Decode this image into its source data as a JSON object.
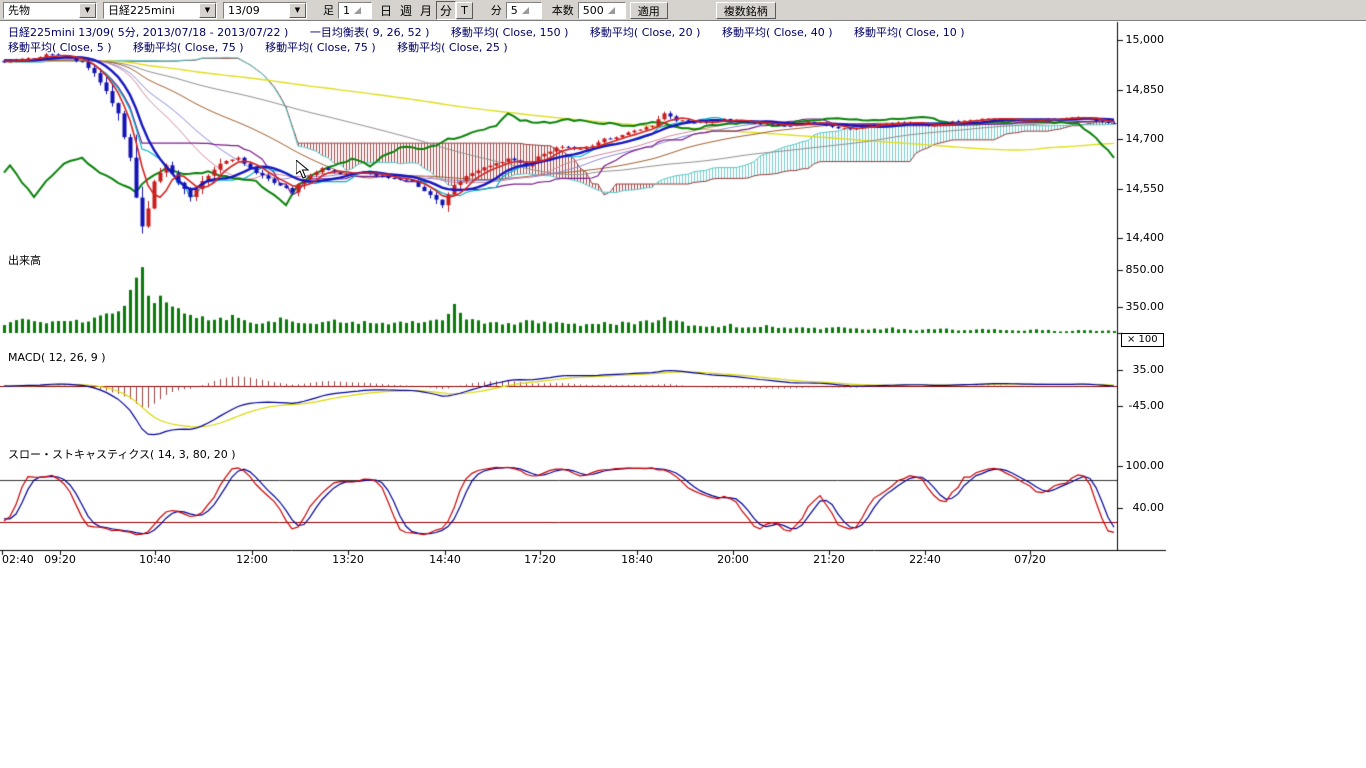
{
  "toolbar": {
    "instrument_type": "先物",
    "instrument": "日経225mini",
    "contract_month": "13/09",
    "ashi_label": "足",
    "ashi_value": "1",
    "period_day": "日",
    "period_week": "週",
    "period_month": "月",
    "period_minute": "分",
    "tick_button": "T",
    "minute_label": "分",
    "minute_value": "5",
    "bars_label": "本数",
    "bars_value": "500",
    "apply_button": "適用",
    "multi_symbol_button": "複数銘柄"
  },
  "chart_header": {
    "line1": [
      "日経225mini 13/09( 5分, 2013/07/18 - 2013/07/22 )",
      "一目均衡表( 9, 26, 52 )",
      "移動平均( Close, 150 )",
      "移動平均( Close, 20 )",
      "移動平均( Close, 40 )",
      "移動平均( Close, 10 )"
    ],
    "line2": [
      "移動平均( Close, 5 )",
      "移動平均( Close, 75 )",
      "移動平均( Close, 75 )",
      "移動平均( Close, 25 )"
    ]
  },
  "sections": {
    "volume_label": "出来高",
    "macd_label": "MACD( 12, 26, 9 )",
    "stoch_label": "スロー・ストキャスティクス( 14, 3, 80, 20 )",
    "multiplier_badge": "× 100"
  },
  "axes": {
    "price_ticks": [
      "15,000",
      "14,850",
      "14,700",
      "14,550",
      "14,400"
    ],
    "volume_ticks": [
      "850.00",
      "350.00"
    ],
    "macd_ticks": [
      "35.00",
      "-45.00"
    ],
    "stoch_ticks": [
      "100.00",
      "40.00"
    ],
    "time_labels": [
      "02:40",
      "09:20",
      "10:40",
      "12:00",
      "13:20",
      "14:40",
      "17:20",
      "18:40",
      "20:00",
      "21:20",
      "22:40",
      "07/20"
    ]
  },
  "chart_data": {
    "type": "candlestick",
    "title": "日経225mini 13/09( 5分, 2013/07/18 - 2013/07/22 )",
    "bars_visible": 186,
    "noise_seed": 7,
    "price_axis": {
      "min": 14400,
      "max": 15000,
      "ticks": [
        15000,
        14850,
        14700,
        14550,
        14400
      ]
    },
    "volume_axis": {
      "ticks": [
        850,
        350
      ],
      "multiplier": 100
    },
    "macd_axis": {
      "ticks": [
        35,
        -45
      ]
    },
    "stoch_axis": {
      "ticks": [
        100,
        40
      ],
      "upper_band": 80,
      "lower_band": 20
    },
    "indicators": {
      "ichimoku": [
        9,
        26,
        52
      ],
      "moving_averages": [
        150,
        20,
        40,
        10,
        5,
        75,
        75,
        25
      ],
      "macd": [
        12,
        26,
        9
      ],
      "slow_stochastics": [
        14,
        3,
        80,
        20
      ]
    },
    "close_path_anchors": [
      [
        -160,
        14900
      ],
      [
        -120,
        14930
      ],
      [
        -80,
        14950
      ],
      [
        -40,
        14930
      ],
      [
        -10,
        14940
      ],
      [
        0,
        14935
      ],
      [
        5,
        14945
      ],
      [
        8,
        14958
      ],
      [
        10,
        14950
      ],
      [
        13,
        14930
      ],
      [
        15,
        14900
      ],
      [
        17,
        14845
      ],
      [
        19,
        14775
      ],
      [
        20,
        14705
      ],
      [
        21,
        14640
      ],
      [
        22,
        14520
      ],
      [
        23,
        14435
      ],
      [
        24,
        14490
      ],
      [
        25,
        14570
      ],
      [
        27,
        14620
      ],
      [
        29,
        14570
      ],
      [
        31,
        14525
      ],
      [
        33,
        14570
      ],
      [
        36,
        14628
      ],
      [
        39,
        14640
      ],
      [
        42,
        14600
      ],
      [
        45,
        14565
      ],
      [
        48,
        14540
      ],
      [
        50,
        14580
      ],
      [
        53,
        14610
      ],
      [
        56,
        14592
      ],
      [
        60,
        14600
      ],
      [
        64,
        14582
      ],
      [
        68,
        14570
      ],
      [
        71,
        14532
      ],
      [
        73,
        14500
      ],
      [
        75,
        14558
      ],
      [
        78,
        14598
      ],
      [
        81,
        14618
      ],
      [
        84,
        14638
      ],
      [
        87,
        14620
      ],
      [
        90,
        14658
      ],
      [
        93,
        14678
      ],
      [
        96,
        14668
      ],
      [
        100,
        14698
      ],
      [
        104,
        14718
      ],
      [
        108,
        14742
      ],
      [
        110,
        14778
      ],
      [
        112,
        14758
      ],
      [
        115,
        14748
      ],
      [
        120,
        14758
      ],
      [
        125,
        14750
      ],
      [
        130,
        14740
      ],
      [
        135,
        14752
      ],
      [
        140,
        14730
      ],
      [
        145,
        14742
      ],
      [
        150,
        14752
      ],
      [
        155,
        14740
      ],
      [
        160,
        14758
      ],
      [
        165,
        14760
      ],
      [
        170,
        14755
      ],
      [
        175,
        14762
      ],
      [
        180,
        14766
      ],
      [
        183,
        14750
      ],
      [
        185,
        14746
      ],
      [
        190,
        14750
      ],
      [
        195,
        14755
      ],
      [
        200,
        14752
      ],
      [
        205,
        14748
      ],
      [
        208,
        14700
      ],
      [
        211,
        14645
      ]
    ],
    "volume_anchors": [
      [
        0,
        120
      ],
      [
        3,
        180
      ],
      [
        6,
        150
      ],
      [
        10,
        200
      ],
      [
        13,
        160
      ],
      [
        16,
        230
      ],
      [
        19,
        320
      ],
      [
        21,
        520
      ],
      [
        22,
        800
      ],
      [
        23,
        950
      ],
      [
        24,
        620
      ],
      [
        25,
        420
      ],
      [
        26,
        520
      ],
      [
        27,
        360
      ],
      [
        28,
        310
      ],
      [
        30,
        260
      ],
      [
        32,
        210
      ],
      [
        35,
        185
      ],
      [
        38,
        225
      ],
      [
        40,
        165
      ],
      [
        43,
        145
      ],
      [
        46,
        185
      ],
      [
        50,
        155
      ],
      [
        53,
        135
      ],
      [
        56,
        165
      ],
      [
        60,
        145
      ],
      [
        63,
        125
      ],
      [
        66,
        155
      ],
      [
        70,
        135
      ],
      [
        73,
        210
      ],
      [
        75,
        360
      ],
      [
        77,
        185
      ],
      [
        80,
        145
      ],
      [
        84,
        125
      ],
      [
        88,
        155
      ],
      [
        92,
        135
      ],
      [
        96,
        115
      ],
      [
        100,
        145
      ],
      [
        104,
        125
      ],
      [
        108,
        165
      ],
      [
        110,
        210
      ],
      [
        112,
        145
      ],
      [
        115,
        105
      ],
      [
        118,
        85
      ],
      [
        121,
        105
      ],
      [
        124,
        75
      ],
      [
        127,
        95
      ],
      [
        130,
        65
      ],
      [
        133,
        85
      ],
      [
        136,
        55
      ],
      [
        140,
        75
      ],
      [
        144,
        45
      ],
      [
        148,
        65
      ],
      [
        152,
        40
      ],
      [
        156,
        55
      ],
      [
        160,
        35
      ],
      [
        164,
        50
      ],
      [
        168,
        30
      ],
      [
        172,
        45
      ],
      [
        176,
        25
      ],
      [
        180,
        40
      ],
      [
        183,
        28
      ],
      [
        185,
        32
      ]
    ],
    "time_axis": {
      "x_positions": [
        2,
        60,
        155,
        252,
        348,
        445,
        540,
        637,
        733,
        829,
        925,
        1030
      ]
    },
    "palette": {
      "candle_up": "#c81e1e",
      "candle_down": "#1414b4",
      "volume": "#0a7a0a",
      "chikou": "#0a820a",
      "ma5": "#d42020",
      "ma10": "#1616c0",
      "ma20": "#d08aa0",
      "ma25": "#8c8cd8",
      "ma40": "#a06030",
      "ma75": "#909090",
      "ma150": "#dede20",
      "tenkan": "#00b4c8",
      "kijun": "#7a1f8a",
      "span_a": "#58c8c8",
      "span_b": "#9a4040",
      "cloud_bull": "#7ecccc",
      "cloud_bear": "#a44a4a",
      "macd": "#000099",
      "macd_signal": "#d8d800",
      "macd_zero": "#990000",
      "macd_hist": "#994444",
      "stoch_k": "#cc0000",
      "stoch_d": "#000099",
      "stoch_upper": "#303030",
      "stoch_lower": "#990000",
      "axis": "#000000"
    }
  }
}
